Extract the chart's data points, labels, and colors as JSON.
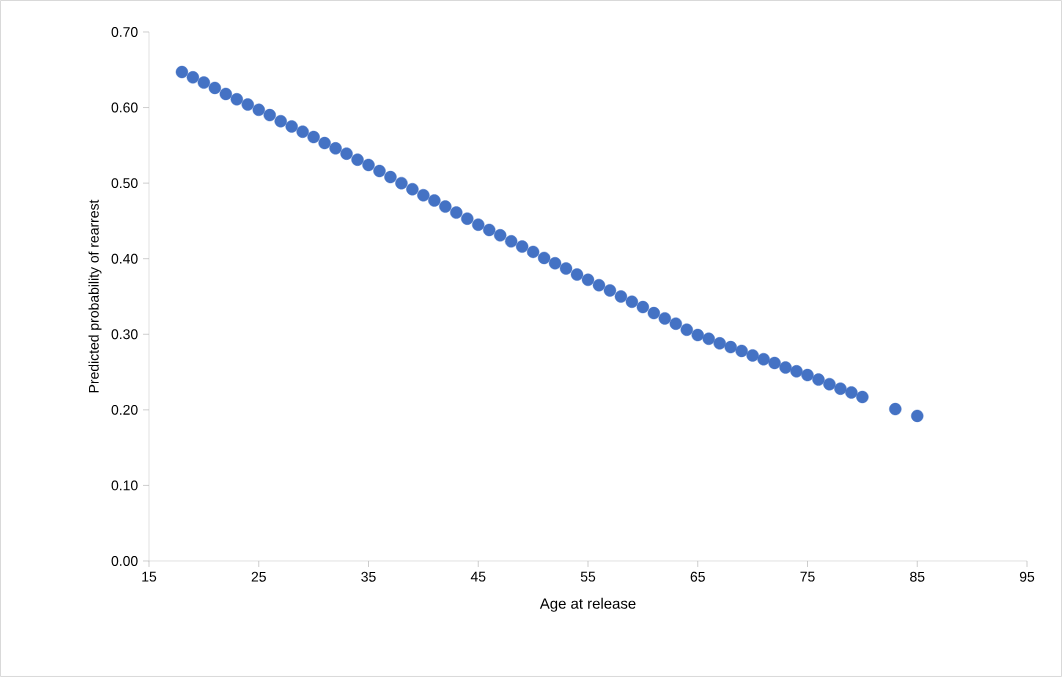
{
  "chart_data": {
    "type": "scatter",
    "xlabel": "Age at release",
    "ylabel": "Predicted probability of rearrest",
    "x": [
      18,
      19,
      20,
      21,
      22,
      23,
      24,
      25,
      26,
      27,
      28,
      29,
      30,
      31,
      32,
      33,
      34,
      35,
      36,
      37,
      38,
      39,
      40,
      41,
      42,
      43,
      44,
      45,
      46,
      47,
      48,
      49,
      50,
      51,
      52,
      53,
      54,
      55,
      56,
      57,
      58,
      59,
      60,
      61,
      62,
      63,
      64,
      65,
      66,
      67,
      68,
      69,
      70,
      71,
      72,
      73,
      74,
      75,
      76,
      77,
      78,
      79,
      80,
      83,
      85
    ],
    "values": [
      0.647,
      0.64,
      0.633,
      0.626,
      0.618,
      0.611,
      0.604,
      0.597,
      0.59,
      0.582,
      0.575,
      0.568,
      0.561,
      0.553,
      0.546,
      0.539,
      0.531,
      0.524,
      0.516,
      0.508,
      0.5,
      0.492,
      0.484,
      0.477,
      0.469,
      0.461,
      0.453,
      0.445,
      0.438,
      0.431,
      0.423,
      0.416,
      0.409,
      0.401,
      0.394,
      0.387,
      0.379,
      0.372,
      0.365,
      0.358,
      0.35,
      0.343,
      0.336,
      0.328,
      0.321,
      0.314,
      0.306,
      0.299,
      0.294,
      0.288,
      0.283,
      0.278,
      0.272,
      0.267,
      0.262,
      0.256,
      0.251,
      0.246,
      0.24,
      0.234,
      0.228,
      0.223,
      0.217,
      0.201,
      0.192
    ],
    "color": "#4472c4",
    "marker": "circle",
    "xlim": [
      15,
      95
    ],
    "xticks": [
      15,
      25,
      35,
      45,
      55,
      65,
      75,
      85,
      95
    ],
    "ylim": [
      0,
      0.7
    ],
    "yticks": [
      {
        "value": 0,
        "label": "0.00"
      },
      {
        "value": 0.1,
        "label": "0.10"
      },
      {
        "value": 0.2,
        "label": "0.20"
      },
      {
        "value": 0.3,
        "label": "0.30"
      },
      {
        "value": 0.4,
        "label": "0.40"
      },
      {
        "value": 0.5,
        "label": "0.50"
      },
      {
        "value": 0.6,
        "label": "0.60"
      },
      {
        "value": 0.7,
        "label": "0.70"
      }
    ],
    "grid": false
  }
}
